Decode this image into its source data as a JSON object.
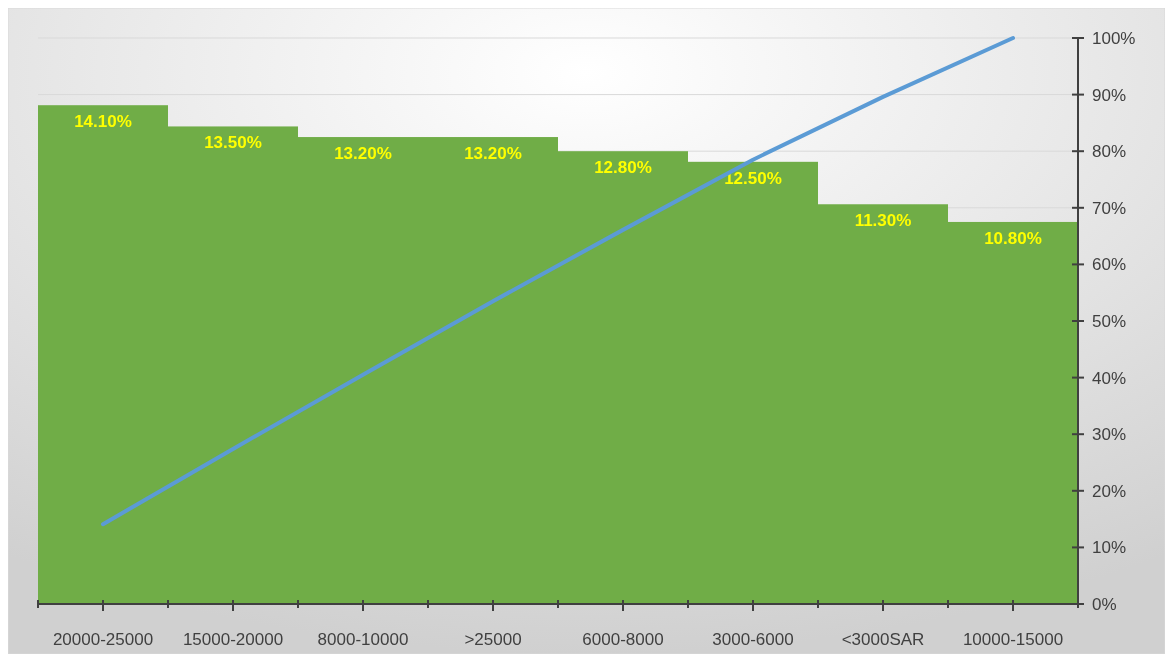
{
  "chart_data": {
    "type": "bar",
    "categories": [
      "20000-25000",
      "15000-20000",
      "8000-10000",
      ">25000",
      "6000-8000",
      "3000-6000",
      "<3000SAR",
      "10000-15000"
    ],
    "series": [
      {
        "color": "#70ad47",
        "values": [
          14.1,
          13.5,
          13.2,
          13.2,
          12.8,
          12.5,
          11.3,
          10.8
        ],
        "value_labels": [
          "14.10%",
          "13.50%",
          "13.20%",
          "13.20%",
          "12.80%",
          "12.50%",
          "11.30%",
          "10.80%"
        ]
      },
      {
        "type": "line",
        "axis": "y2",
        "color": "#5b9bd5",
        "values": [
          14.1,
          27.4,
          40.5,
          53.5,
          66.1,
          78.5,
          89.6,
          100
        ]
      }
    ],
    "ylim": [
      0,
      16
    ],
    "y2lim": [
      0,
      100
    ],
    "y2ticks": [
      {
        "value": 0,
        "label": "0%"
      },
      {
        "value": 10,
        "label": "10%"
      },
      {
        "value": 20,
        "label": "20%"
      },
      {
        "value": 30,
        "label": "30%"
      },
      {
        "value": 40,
        "label": "40%"
      },
      {
        "value": 50,
        "label": "50%"
      },
      {
        "value": 60,
        "label": "60%"
      },
      {
        "value": 70,
        "label": "70%"
      },
      {
        "value": 80,
        "label": "80%"
      },
      {
        "value": 90,
        "label": "90%"
      },
      {
        "value": 100,
        "label": "100%"
      }
    ],
    "grid": true,
    "marker": "none",
    "line_style": "solid"
  }
}
